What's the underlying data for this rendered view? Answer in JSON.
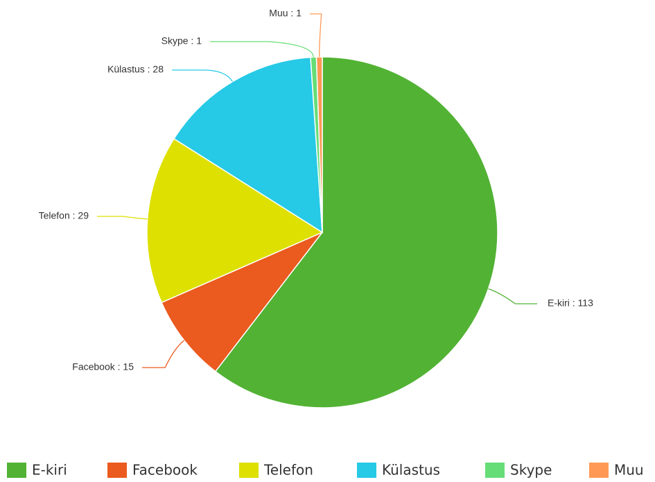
{
  "chart_data": {
    "type": "pie",
    "categories": [
      "E-kiri",
      "Facebook",
      "Telefon",
      "Külastus",
      "Skype",
      "Muu"
    ],
    "values": [
      113,
      15,
      29,
      28,
      1,
      1
    ],
    "value_labels": [
      "E-kiri : 113",
      "Facebook : 15",
      "Telefon : 29",
      "Külastus : 28",
      "Skype : 1",
      "Muu : 1"
    ],
    "colors": [
      "#52b234",
      "#eb5a1e",
      "#dde000",
      "#26c9e6",
      "#66dd77",
      "#ff9955"
    ],
    "legend": "bottom"
  }
}
